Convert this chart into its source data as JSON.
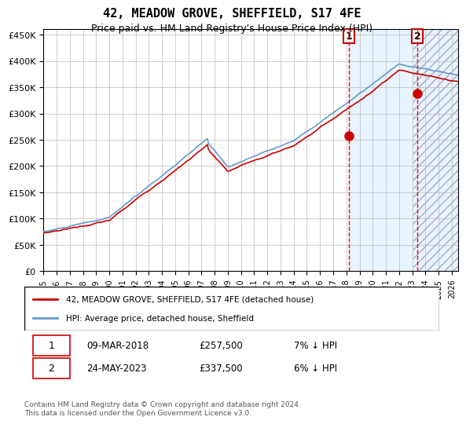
{
  "title": "42, MEADOW GROVE, SHEFFIELD, S17 4FE",
  "subtitle": "Price paid vs. HM Land Registry's House Price Index (HPI)",
  "ylabel": "",
  "ylim": [
    0,
    460000
  ],
  "yticks": [
    0,
    50000,
    100000,
    150000,
    200000,
    250000,
    300000,
    350000,
    400000,
    450000
  ],
  "hpi_color": "#6699cc",
  "price_color": "#cc0000",
  "bg_color": "#ddeeff",
  "grid_color": "#bbbbbb",
  "transaction1_date": 2018.18,
  "transaction1_price": 257500,
  "transaction1_label": "1",
  "transaction2_date": 2023.39,
  "transaction2_price": 337500,
  "transaction2_label": "2",
  "legend_line1": "42, MEADOW GROVE, SHEFFIELD, S17 4FE (detached house)",
  "legend_line2": "HPI: Average price, detached house, Sheffield",
  "table_row1": [
    "1",
    "09-MAR-2018",
    "£257,500",
    "7% ↓ HPI"
  ],
  "table_row2": [
    "2",
    "24-MAY-2023",
    "£337,500",
    "6% ↓ HPI"
  ],
  "footnote": "Contains HM Land Registry data © Crown copyright and database right 2024.\nThis data is licensed under the Open Government Licence v3.0.",
  "xstart": 1995.0,
  "xend": 2026.5
}
